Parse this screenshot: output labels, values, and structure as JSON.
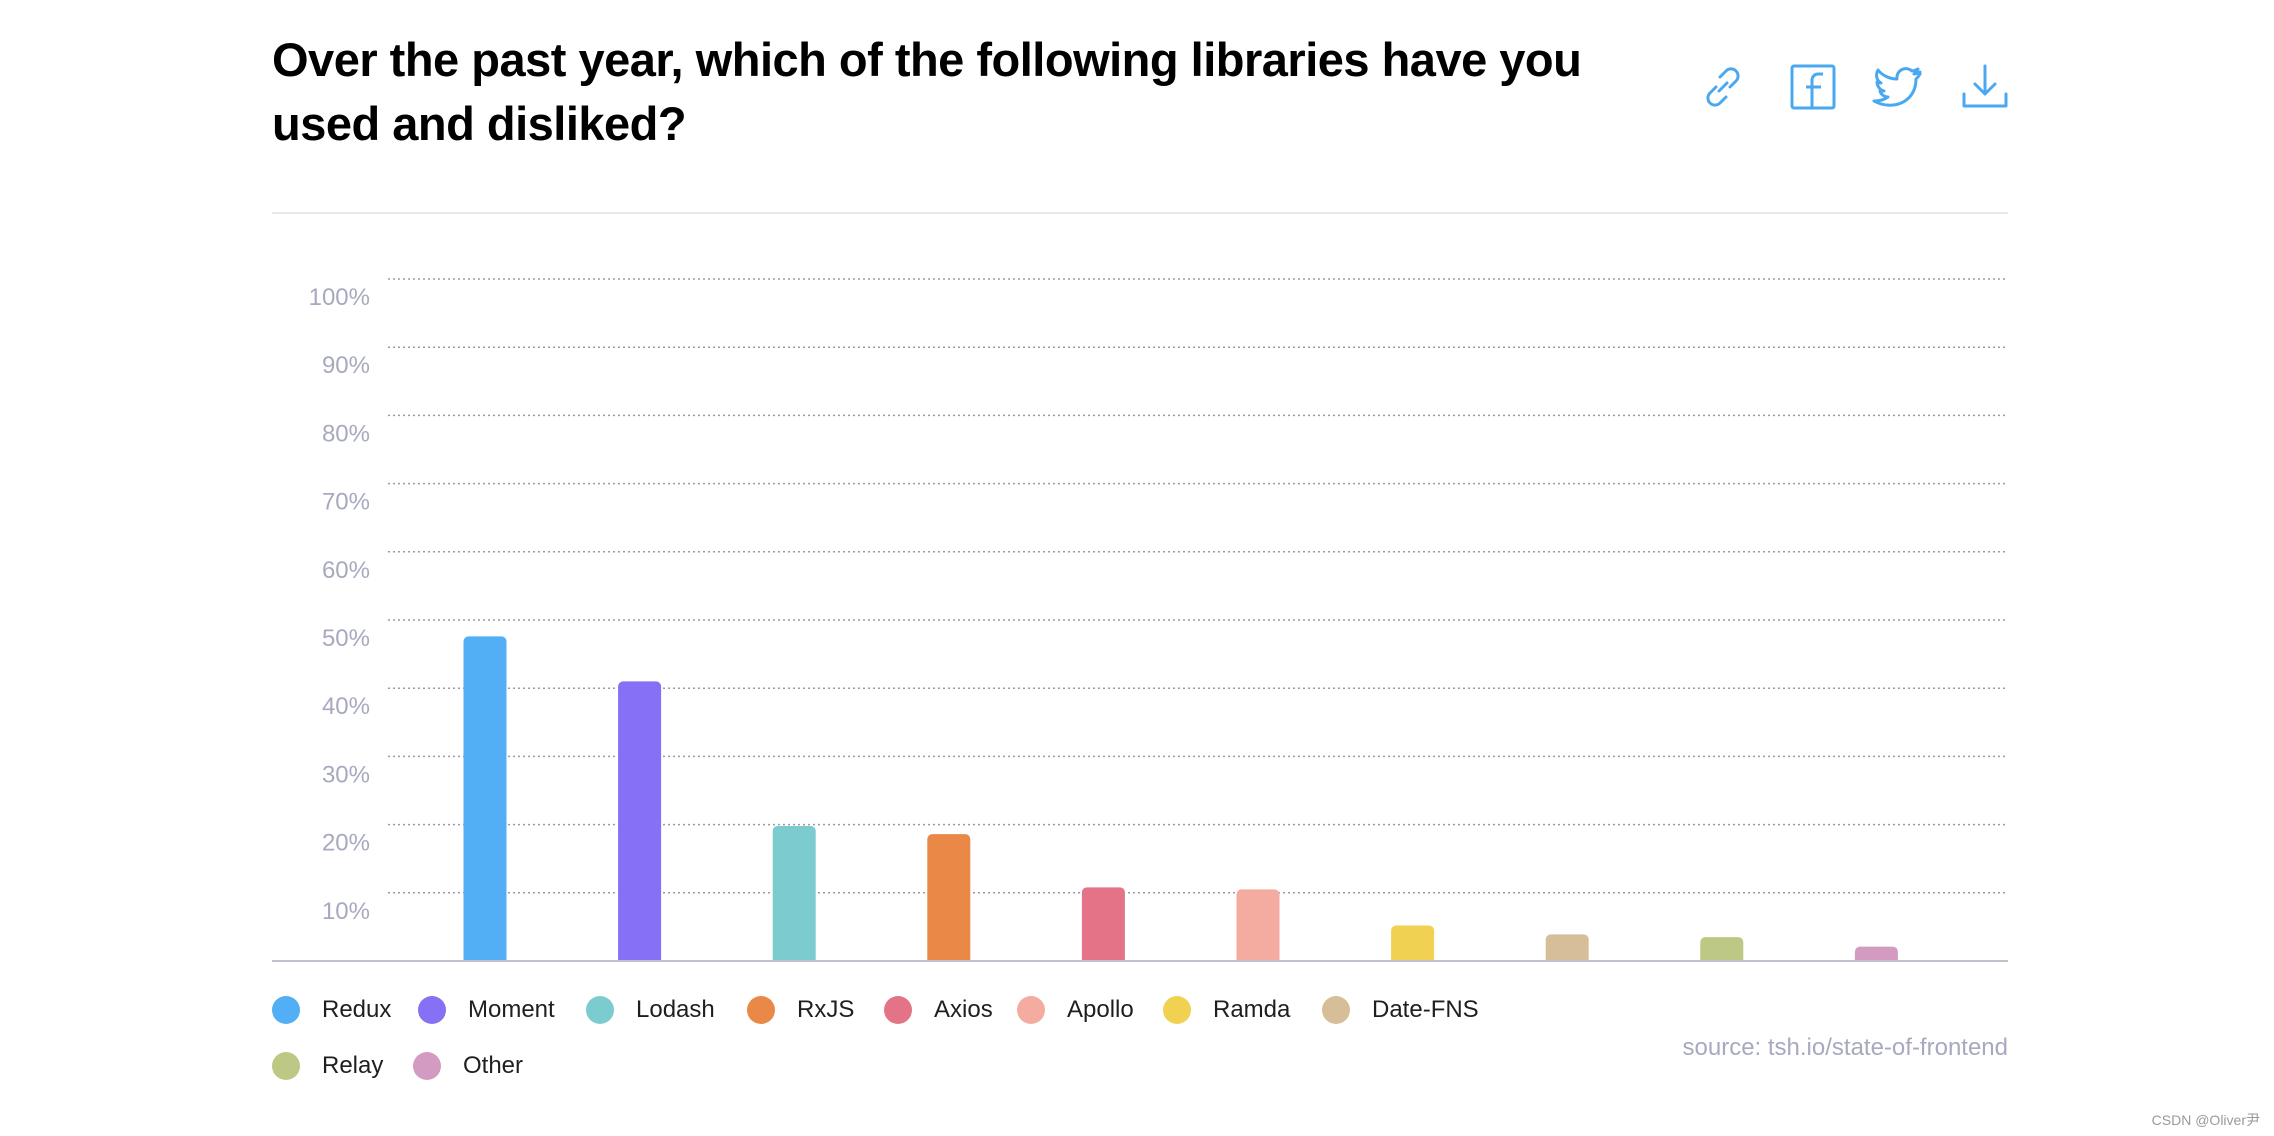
{
  "header": {
    "title": "Over the past year, which of the following libraries have you used and disliked?"
  },
  "share_icons": [
    {
      "name": "link-icon",
      "color": "#4aa8f0"
    },
    {
      "name": "facebook-icon",
      "color": "#4aa8f0"
    },
    {
      "name": "twitter-icon",
      "color": "#4aa8f0"
    },
    {
      "name": "download-icon",
      "color": "#4aa8f0"
    }
  ],
  "chart_data": {
    "type": "bar",
    "title": "Over the past year, which of the following libraries have you used and disliked?",
    "xlabel": "",
    "ylabel": "",
    "ylim": [
      0,
      100
    ],
    "y_ticks": [
      {
        "value": 10,
        "label": "10%"
      },
      {
        "value": 20,
        "label": "20%"
      },
      {
        "value": 30,
        "label": "30%"
      },
      {
        "value": 40,
        "label": "40%"
      },
      {
        "value": 50,
        "label": "50%"
      },
      {
        "value": 60,
        "label": "60%"
      },
      {
        "value": 70,
        "label": "70%"
      },
      {
        "value": 80,
        "label": "80%"
      },
      {
        "value": 90,
        "label": "90%"
      },
      {
        "value": 100,
        "label": "100%"
      }
    ],
    "grid": true,
    "categories": [
      "Redux",
      "Moment",
      "Lodash",
      "RxJS",
      "Axios",
      "Apollo",
      "Ramda",
      "Date-FNS",
      "Relay",
      "Other"
    ],
    "values": [
      47.6,
      41,
      19.8,
      18.6,
      10.8,
      10.5,
      5.2,
      3.9,
      3.5,
      2.1
    ],
    "colors": [
      "#52aef5",
      "#8570f6",
      "#7ccbcf",
      "#ea8848",
      "#e57388",
      "#f4aba0",
      "#f0d152",
      "#d6be99",
      "#bcc883",
      "#d49bc2"
    ],
    "legend_position": "bottom"
  },
  "legend": {
    "items": [
      {
        "label": "Redux",
        "color": "#52aef5"
      },
      {
        "label": "Moment",
        "color": "#8570f6"
      },
      {
        "label": "Lodash",
        "color": "#7ccbcf"
      },
      {
        "label": "RxJS",
        "color": "#ea8848"
      },
      {
        "label": "Axios",
        "color": "#e57388"
      },
      {
        "label": "Apollo",
        "color": "#f4aba0"
      },
      {
        "label": "Ramda",
        "color": "#f0d152"
      },
      {
        "label": "Date-FNS",
        "color": "#d6be99"
      },
      {
        "label": "Relay",
        "color": "#bcc883"
      },
      {
        "label": "Other",
        "color": "#d49bc2"
      }
    ]
  },
  "footer": {
    "source": "source: tsh.io/state-of-frontend",
    "watermark": "CSDN @Oliver尹"
  }
}
